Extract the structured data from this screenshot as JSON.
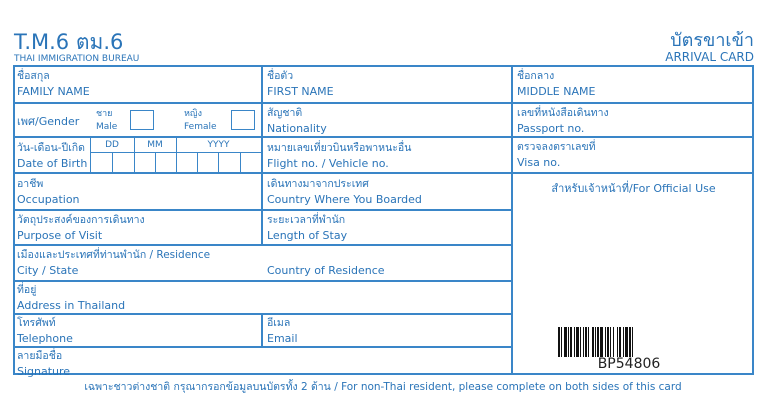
{
  "header": {
    "title": "T.M.6 ตม.6",
    "bureau": "THAI IMMIGRATION BUREAU",
    "card_th": "บัตรขาเข้า",
    "card_en": "ARRIVAL CARD"
  },
  "fields": {
    "family_name": {
      "th": "ชื่อสกุล",
      "en": "FAMILY NAME"
    },
    "first_name": {
      "th": "ชื่อตัว",
      "en": "FIRST NAME"
    },
    "middle_name": {
      "th": "ชื่อกลาง",
      "en": "MIDDLE NAME"
    },
    "gender": {
      "label": "เพศ/Gender",
      "male_th": "ชาย",
      "male_en": "Male",
      "female_th": "หญิง",
      "female_en": "Female"
    },
    "nationality": {
      "th": "สัญชาติ",
      "en": "Nationality"
    },
    "passport": {
      "th": "เลขที่หนังสือเดินทาง",
      "en": "Passport no."
    },
    "dob": {
      "th": "วัน-เดือน-ปีเกิด",
      "en": "Date of Birth",
      "dd": "DD",
      "mm": "MM",
      "yyyy": "YYYY"
    },
    "flight": {
      "th": "หมายเลขเที่ยวบินหรือพาหนะอื่น",
      "en": "Flight no. / Vehicle no."
    },
    "visa": {
      "th": "ตรวจลงตราเลขที่",
      "en": "Visa no."
    },
    "occupation": {
      "th": "อาชีพ",
      "en": "Occupation"
    },
    "boarded": {
      "th": "เดินทางมาจากประเทศ",
      "en": "Country Where You Boarded"
    },
    "purpose": {
      "th": "วัตถุประสงค์ของการเดินทาง",
      "en": "Purpose of Visit"
    },
    "stay": {
      "th": "ระยะเวลาที่พำนัก",
      "en": "Length of Stay"
    },
    "residence": {
      "th": "เมืองและประเทศที่ท่านพำนัก / Residence",
      "city": "City / State",
      "country": "Country of Residence"
    },
    "address": {
      "th": "ที่อยู่",
      "en": "Address in Thailand"
    },
    "telephone": {
      "th": "โทรศัพท์",
      "en": "Telephone"
    },
    "email": {
      "th": "อีเมล",
      "en": "Email"
    },
    "signature": {
      "th": "ลายมือชื่อ",
      "en": "Signature"
    }
  },
  "official_use": "สำหรับเจ้าหน้าที่/For Official Use",
  "barcode_number": "BP54806",
  "footer": "เฉพาะชาวต่างชาติ กรุณากรอกข้อมูลบนบัตรทั้ง 2 ด้าน   /   For non-Thai resident, please complete on both sides of this card"
}
